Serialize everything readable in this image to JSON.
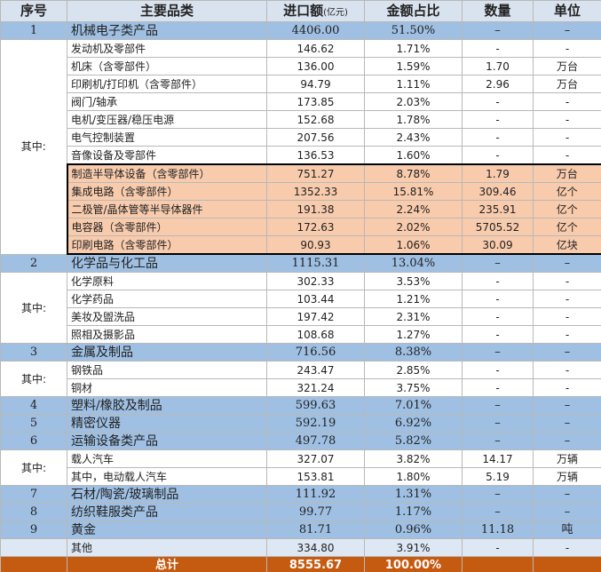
{
  "table": {
    "header": [
      "序号",
      "主要品类",
      "进口额",
      "金额占比",
      "数量",
      "单位"
    ],
    "header_unit": "(亿元)",
    "sections": [
      {
        "row": {
          "no": "1",
          "name": "机械电子类产品",
          "amount": "4406.00",
          "share": "51.50%",
          "qty": "–",
          "unit": "–"
        },
        "sub_label": "其中:",
        "items": [
          {
            "name": "发动机及零部件",
            "amount": "146.62",
            "share": "1.71%",
            "qty": "-",
            "unit": "-"
          },
          {
            "name": "机床（含零部件）",
            "amount": "136.00",
            "share": "1.59%",
            "qty": "1.70",
            "unit": "万台"
          },
          {
            "name": "印刷机/打印机（含零部件）",
            "amount": "94.79",
            "share": "1.11%",
            "qty": "2.96",
            "unit": "万台"
          },
          {
            "name": "阀门/轴承",
            "amount": "173.85",
            "share": "2.03%",
            "qty": "-",
            "unit": "-"
          },
          {
            "name": "电机/变压器/稳压电源",
            "amount": "152.68",
            "share": "1.78%",
            "qty": "-",
            "unit": "-"
          },
          {
            "name": "电气控制装置",
            "amount": "207.56",
            "share": "2.43%",
            "qty": "-",
            "unit": "-"
          },
          {
            "name": "音像设备及零部件",
            "amount": "136.53",
            "share": "1.60%",
            "qty": "-",
            "unit": "-"
          }
        ],
        "highlighted": [
          {
            "name": "制造半导体设备（含零部件）",
            "amount": "751.27",
            "share": "8.78%",
            "qty": "1.79",
            "unit": "万台"
          },
          {
            "name": "集成电路（含零部件）",
            "amount": "1352.33",
            "share": "15.81%",
            "qty": "309.46",
            "unit": "亿个"
          },
          {
            "name": "二极管/晶体管等半导体器件",
            "amount": "191.38",
            "share": "2.24%",
            "qty": "235.91",
            "unit": "亿个"
          },
          {
            "name": "电容器（含零部件）",
            "amount": "172.63",
            "share": "2.02%",
            "qty": "5705.52",
            "unit": "亿个"
          },
          {
            "name": "印刷电路（含零部件）",
            "amount": "90.93",
            "share": "1.06%",
            "qty": "30.09",
            "unit": "亿块"
          }
        ]
      },
      {
        "row": {
          "no": "2",
          "name": "化学品与化工品",
          "amount": "1115.31",
          "share": "13.04%",
          "qty": "–",
          "unit": "–"
        },
        "sub_label": "其中:",
        "items": [
          {
            "name": "化学原料",
            "amount": "302.33",
            "share": "3.53%",
            "qty": "-",
            "unit": "-"
          },
          {
            "name": "化学药品",
            "amount": "103.44",
            "share": "1.21%",
            "qty": "-",
            "unit": "-"
          },
          {
            "name": "美妆及盥洗品",
            "amount": "197.42",
            "share": "2.31%",
            "qty": "-",
            "unit": "-"
          },
          {
            "name": "照相及摄影品",
            "amount": "108.68",
            "share": "1.27%",
            "qty": "-",
            "unit": "-"
          }
        ]
      },
      {
        "row": {
          "no": "3",
          "name": "金属及制品",
          "amount": "716.56",
          "share": "8.38%",
          "qty": "–",
          "unit": "–"
        },
        "sub_label": "其中:",
        "items": [
          {
            "name": "钢铁品",
            "amount": "243.47",
            "share": "2.85%",
            "qty": "-",
            "unit": "-"
          },
          {
            "name": "铜材",
            "amount": "321.24",
            "share": "3.75%",
            "qty": "-",
            "unit": "-"
          }
        ]
      },
      {
        "row": {
          "no": "4",
          "name": "塑料/橡胶及制品",
          "amount": "599.63",
          "share": "7.01%",
          "qty": "–",
          "unit": "–"
        }
      },
      {
        "row": {
          "no": "5",
          "name": "精密仪器",
          "amount": "592.19",
          "share": "6.92%",
          "qty": "–",
          "unit": "–"
        }
      },
      {
        "row": {
          "no": "6",
          "name": "运输设备类产品",
          "amount": "497.78",
          "share": "5.82%",
          "qty": "–",
          "unit": "–"
        },
        "sub_label": "其中:",
        "items": [
          {
            "name": "载人汽车",
            "amount": "327.07",
            "share": "3.82%",
            "qty": "14.17",
            "unit": "万辆"
          },
          {
            "name": "其中，电动载人汽车",
            "amount": "153.81",
            "share": "1.80%",
            "qty": "5.19",
            "unit": "万辆"
          }
        ]
      },
      {
        "row": {
          "no": "7",
          "name": "石材/陶瓷/玻璃制品",
          "amount": "111.92",
          "share": "1.31%",
          "qty": "–",
          "unit": "–"
        }
      },
      {
        "row": {
          "no": "8",
          "name": "纺织鞋服类产品",
          "amount": "99.77",
          "share": "1.17%",
          "qty": "–",
          "unit": "–"
        }
      },
      {
        "row": {
          "no": "9",
          "name": "黄金",
          "amount": "81.71",
          "share": "0.96%",
          "qty": "11.18",
          "unit": "吨"
        }
      }
    ],
    "other": {
      "name": "其他",
      "amount": "334.80",
      "share": "3.91%",
      "qty": "-",
      "unit": "-"
    },
    "total": {
      "name": "总计",
      "amount": "8555.67",
      "share": "100.00%"
    }
  }
}
